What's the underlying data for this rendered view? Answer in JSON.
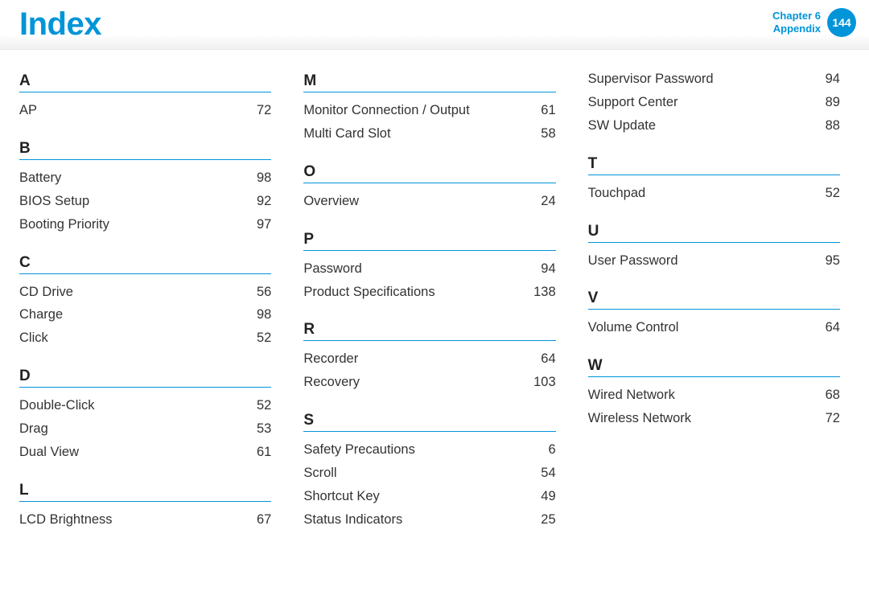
{
  "header": {
    "title": "Index",
    "chapter_label": "Chapter 6",
    "section_label": "Appendix",
    "page_number": "144"
  },
  "styles": {
    "accent_color": "#0094d8",
    "text_color": "#333333",
    "header_title_fontsize": 40,
    "letter_fontsize": 19,
    "entry_fontsize": 16.5,
    "badge_bg": "#0094d8",
    "badge_fg": "#ffffff"
  },
  "columns": [
    {
      "sections": [
        {
          "letter": "A",
          "entries": [
            {
              "term": "AP",
              "page": "72"
            }
          ]
        },
        {
          "letter": "B",
          "entries": [
            {
              "term": "Battery",
              "page": "98"
            },
            {
              "term": "BIOS Setup",
              "page": "92"
            },
            {
              "term": "Booting Priority",
              "page": "97"
            }
          ]
        },
        {
          "letter": "C",
          "entries": [
            {
              "term": "CD Drive",
              "page": "56"
            },
            {
              "term": "Charge",
              "page": "98"
            },
            {
              "term": "Click",
              "page": "52"
            }
          ]
        },
        {
          "letter": "D",
          "entries": [
            {
              "term": "Double-Click",
              "page": "52"
            },
            {
              "term": "Drag",
              "page": "53"
            },
            {
              "term": "Dual View",
              "page": "61"
            }
          ]
        },
        {
          "letter": "L",
          "entries": [
            {
              "term": "LCD Brightness",
              "page": "67"
            }
          ]
        }
      ]
    },
    {
      "sections": [
        {
          "letter": "M",
          "entries": [
            {
              "term": "Monitor Connection / Output",
              "page": "61"
            },
            {
              "term": "Multi Card Slot",
              "page": "58"
            }
          ]
        },
        {
          "letter": "O",
          "entries": [
            {
              "term": "Overview",
              "page": "24"
            }
          ]
        },
        {
          "letter": "P",
          "entries": [
            {
              "term": "Password",
              "page": "94"
            },
            {
              "term": "Product Specifications",
              "page": "138"
            }
          ]
        },
        {
          "letter": "R",
          "entries": [
            {
              "term": "Recorder",
              "page": "64"
            },
            {
              "term": "Recovery",
              "page": "103"
            }
          ]
        },
        {
          "letter": "S",
          "entries": [
            {
              "term": "Safety Precautions",
              "page": "6"
            },
            {
              "term": "Scroll",
              "page": "54"
            },
            {
              "term": "Shortcut Key",
              "page": "49"
            },
            {
              "term": "Status Indicators",
              "page": "25"
            }
          ]
        }
      ]
    },
    {
      "sections": [
        {
          "letter": "",
          "entries": [
            {
              "term": "Supervisor Password",
              "page": "94"
            },
            {
              "term": "Support Center",
              "page": "89"
            },
            {
              "term": "SW Update",
              "page": "88"
            }
          ]
        },
        {
          "letter": "T",
          "entries": [
            {
              "term": "Touchpad",
              "page": "52"
            }
          ]
        },
        {
          "letter": "U",
          "entries": [
            {
              "term": "User Password",
              "page": "95"
            }
          ]
        },
        {
          "letter": "V",
          "entries": [
            {
              "term": "Volume Control",
              "page": "64"
            }
          ]
        },
        {
          "letter": "W",
          "entries": [
            {
              "term": "Wired Network",
              "page": "68"
            },
            {
              "term": "Wireless Network",
              "page": "72"
            }
          ]
        }
      ]
    }
  ]
}
